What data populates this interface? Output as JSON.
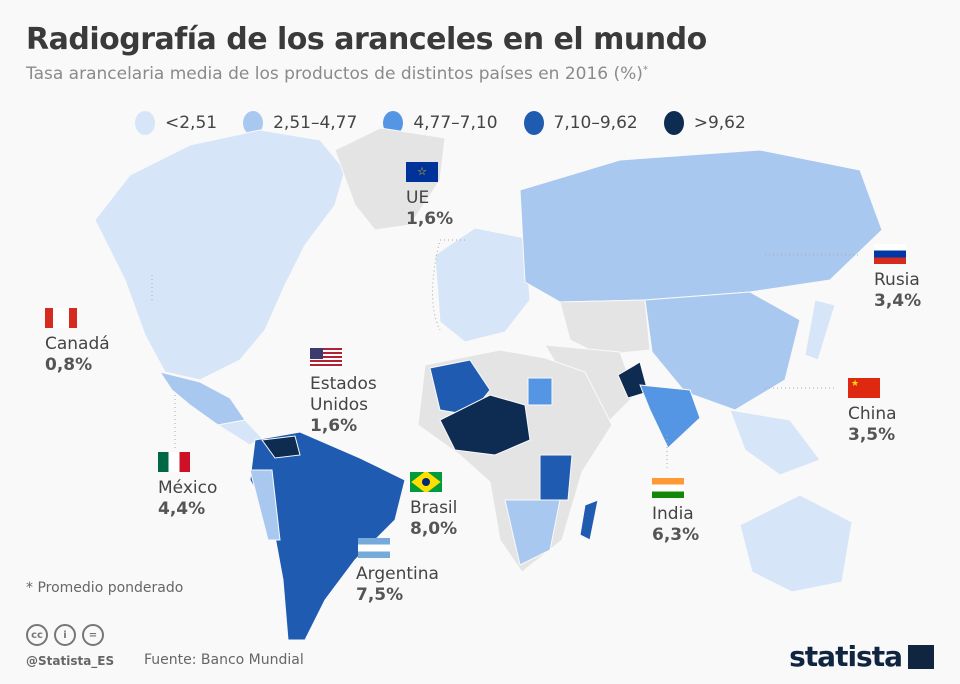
{
  "title": "Radiografía de los aranceles en el mundo",
  "subtitle": "Tasa arancelaria media de los productos de distintos países en 2016 (%)",
  "subtitle_mark": "*",
  "legend": [
    {
      "label": "<2,51",
      "color": "#d6e5f8"
    },
    {
      "label": "2,51–4,77",
      "color": "#a9c8f0"
    },
    {
      "label": "4,77–7,10",
      "color": "#5596e4"
    },
    {
      "label": "7,10–9,62",
      "color": "#1f5bb0"
    },
    {
      "label": ">9,62",
      "color": "#0e2b52"
    }
  ],
  "no_data_color": "#e4e4e4",
  "callouts": [
    {
      "name": "Canadá",
      "value": "0,8%",
      "flag": "canada-flag"
    },
    {
      "name": "Estados Unidos",
      "value": "1,6%",
      "flag": "usa-flag"
    },
    {
      "name": "México",
      "value": "4,4%",
      "flag": "mexico-flag"
    },
    {
      "name": "Brasil",
      "value": "8,0%",
      "flag": "brazil-flag"
    },
    {
      "name": "Argentina",
      "value": "7,5%",
      "flag": "argentina-flag"
    },
    {
      "name": "UE",
      "value": "1,6%",
      "flag": "eu-flag"
    },
    {
      "name": "Rusia",
      "value": "3,4%",
      "flag": "russia-flag"
    },
    {
      "name": "China",
      "value": "3,5%",
      "flag": "china-flag"
    },
    {
      "name": "India",
      "value": "6,3%",
      "flag": "india-flag"
    }
  ],
  "footnote": "* Promedio ponderado",
  "handle": "@Statista_ES",
  "source": "Fuente: Banco Mundial",
  "brand": "statista",
  "license_icons": [
    "cc-icon",
    "by-icon",
    "nd-icon"
  ]
}
